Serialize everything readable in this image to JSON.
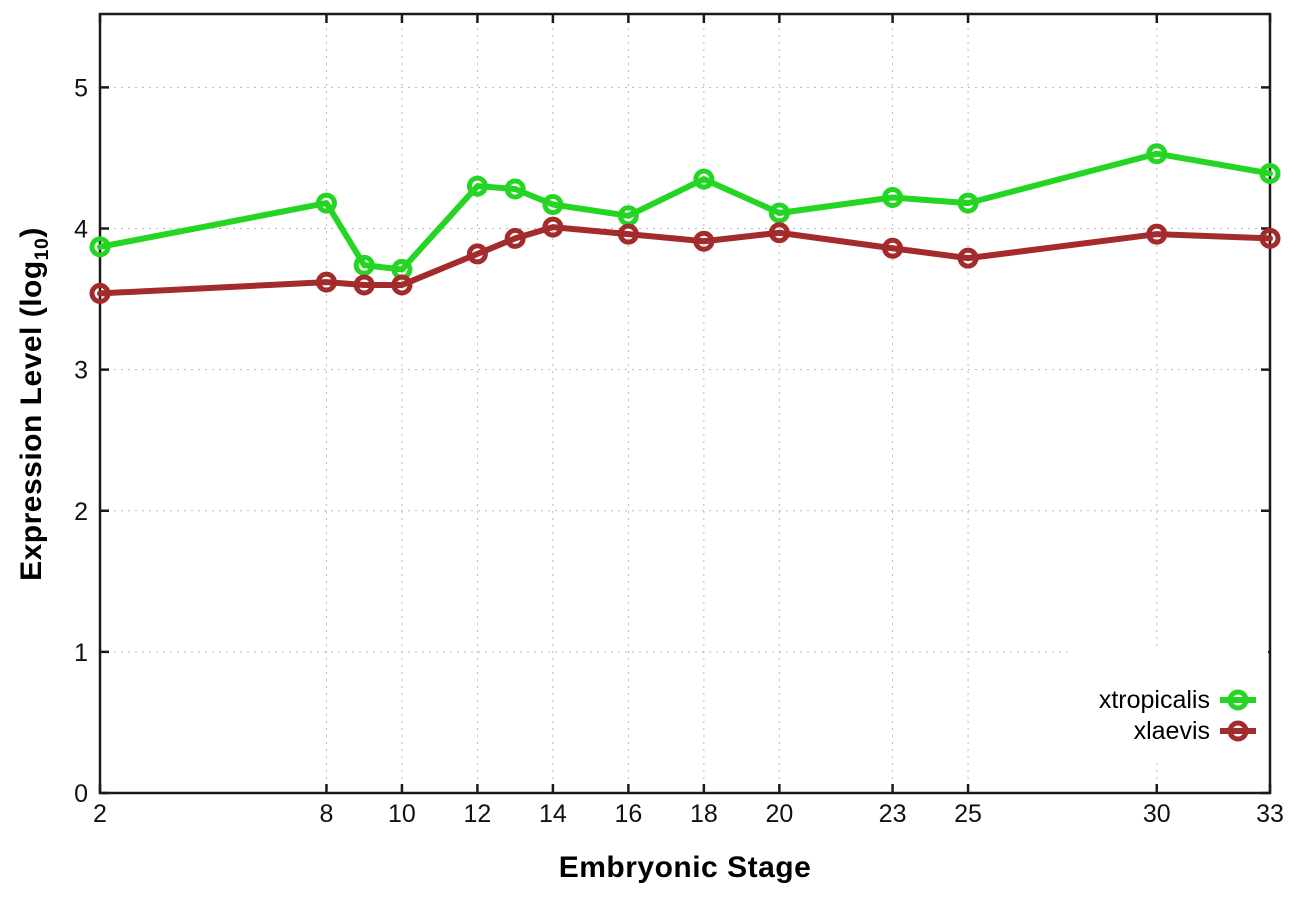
{
  "chart_data": {
    "type": "line",
    "title": "",
    "xlabel": "Embryonic Stage",
    "ylabel": {
      "prefix": "Expression Level (log",
      "subscript": "10",
      "suffix": ")"
    },
    "x": [
      2,
      8,
      9,
      10,
      12,
      13,
      14,
      16,
      18,
      20,
      23,
      25,
      30,
      33
    ],
    "series": [
      {
        "name": "xtropicalis",
        "color": "#24d524",
        "values": [
          3.87,
          4.18,
          3.74,
          3.71,
          4.3,
          4.28,
          4.17,
          4.09,
          4.35,
          4.11,
          4.22,
          4.18,
          4.53,
          4.39
        ]
      },
      {
        "name": "xlaevis",
        "color": "#a32b2b",
        "values": [
          3.54,
          3.62,
          3.6,
          3.6,
          3.82,
          3.93,
          4.01,
          3.96,
          3.91,
          3.97,
          3.86,
          3.79,
          3.96,
          3.93
        ]
      }
    ],
    "x_ticks": [
      2,
      8,
      10,
      12,
      14,
      16,
      18,
      20,
      23,
      25,
      30,
      33
    ],
    "y_ticks": [
      0,
      1,
      2,
      3,
      4,
      5
    ],
    "xlim": [
      2,
      33
    ],
    "ylim": [
      0,
      5.52
    ],
    "grid": true,
    "legend_position": "bottom-right",
    "marker": "open-circle",
    "line_width": 6,
    "colors": {
      "grid": "#b9b9b9",
      "axis": "#1a1a1a",
      "text": "#111111",
      "background": "#ffffff"
    }
  }
}
